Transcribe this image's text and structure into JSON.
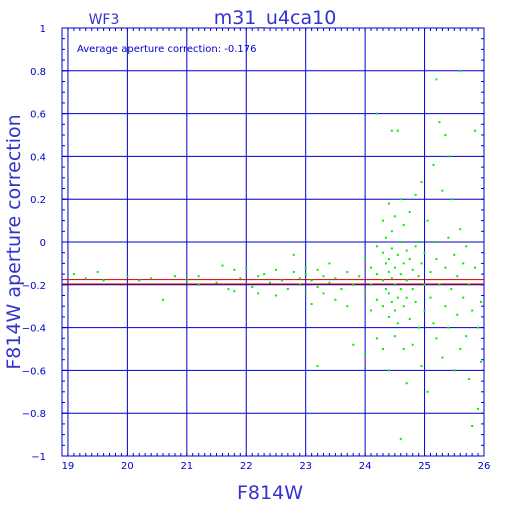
{
  "chart_data": {
    "type": "scatter",
    "title": "m31_u4ca10",
    "chip_label": "WF3",
    "annotation": "Average aperture correction: -0.176",
    "xlabel": "F814W",
    "ylabel": "F814W aperture correction",
    "xlim": [
      18.9,
      26.0
    ],
    "ylim": [
      -1.0,
      1.0
    ],
    "grid": true,
    "x_ticks": [
      19,
      20,
      21,
      22,
      23,
      24,
      25,
      26
    ],
    "y_ticks": [
      -1,
      -0.8,
      -0.6,
      -0.4,
      -0.2,
      0,
      0.2,
      0.4,
      0.6,
      0.8,
      1
    ],
    "x_tick_labels": [
      "19",
      "20",
      "21",
      "22",
      "23",
      "24",
      "25",
      "26"
    ],
    "y_tick_labels": [
      "−1",
      "−0.8",
      "−0.6",
      "−0.4",
      "−0.2",
      "0",
      "0.2",
      "0.4",
      "0.6",
      "0.8",
      "1"
    ],
    "reference_lines": [
      {
        "y": -0.176,
        "color": "#cc0000"
      },
      {
        "y": -0.196,
        "color": "#cc0000"
      }
    ],
    "colors": {
      "background": "#ffffff",
      "axes": "#0000cc",
      "grid": "#0000cc",
      "points": "#00ee00",
      "label_text": "#3333cc"
    },
    "series": [
      {
        "points": [
          [
            19.1,
            -0.15
          ],
          [
            19.3,
            -0.17
          ],
          [
            19.5,
            -0.14
          ],
          [
            19.6,
            -0.18
          ],
          [
            20.0,
            -0.16
          ],
          [
            20.2,
            -0.18
          ],
          [
            20.4,
            -0.17
          ],
          [
            20.6,
            -0.27
          ],
          [
            20.8,
            -0.16
          ],
          [
            21.0,
            -0.18
          ],
          [
            21.2,
            -0.16
          ],
          [
            21.2,
            -0.2
          ],
          [
            21.5,
            -0.19
          ],
          [
            21.6,
            -0.11
          ],
          [
            21.7,
            -0.22
          ],
          [
            21.8,
            -0.13
          ],
          [
            21.8,
            -0.23
          ],
          [
            21.9,
            -0.17
          ],
          [
            22.0,
            -0.12
          ],
          [
            22.1,
            -0.21
          ],
          [
            22.2,
            -0.16
          ],
          [
            22.2,
            -0.24
          ],
          [
            22.3,
            -0.15
          ],
          [
            22.4,
            -0.19
          ],
          [
            22.5,
            -0.25
          ],
          [
            22.5,
            -0.13
          ],
          [
            22.6,
            -0.18
          ],
          [
            22.7,
            -0.22
          ],
          [
            22.8,
            -0.14
          ],
          [
            22.8,
            -0.06
          ],
          [
            22.9,
            -0.17
          ],
          [
            22.9,
            -0.2
          ],
          [
            23.0,
            -0.15
          ],
          [
            23.0,
            -0.24
          ],
          [
            23.0,
            -0.12
          ],
          [
            23.1,
            -0.18
          ],
          [
            23.1,
            -0.29
          ],
          [
            23.2,
            -0.21
          ],
          [
            23.2,
            -0.13
          ],
          [
            23.2,
            -0.58
          ],
          [
            23.3,
            -0.16
          ],
          [
            23.3,
            -0.24
          ],
          [
            23.4,
            -0.1
          ],
          [
            23.4,
            -0.19
          ],
          [
            23.5,
            -0.27
          ],
          [
            23.5,
            -0.17
          ],
          [
            23.6,
            -0.22
          ],
          [
            23.7,
            -0.14
          ],
          [
            23.7,
            -0.3
          ],
          [
            23.8,
            -0.2
          ],
          [
            23.8,
            -0.48
          ],
          [
            23.9,
            -0.16
          ],
          [
            24.0,
            -0.07
          ],
          [
            24.0,
            -0.24
          ],
          [
            24.0,
            -0.52
          ],
          [
            24.1,
            -0.12
          ],
          [
            24.1,
            -0.2
          ],
          [
            24.1,
            -0.32
          ],
          [
            24.2,
            -0.02
          ],
          [
            24.2,
            -0.15
          ],
          [
            24.2,
            -0.27
          ],
          [
            24.2,
            0.6
          ],
          [
            24.2,
            -0.45
          ],
          [
            24.3,
            0.1
          ],
          [
            24.3,
            -0.05
          ],
          [
            24.3,
            -0.18
          ],
          [
            24.3,
            -0.3
          ],
          [
            24.3,
            -0.5
          ],
          [
            24.35,
            0.02
          ],
          [
            24.35,
            -0.1
          ],
          [
            24.35,
            -0.22
          ],
          [
            24.4,
            0.18
          ],
          [
            24.4,
            -0.08
          ],
          [
            24.4,
            -0.14
          ],
          [
            24.4,
            -0.24
          ],
          [
            24.4,
            -0.35
          ],
          [
            24.4,
            -0.6
          ],
          [
            24.45,
            0.52
          ],
          [
            24.45,
            0.05
          ],
          [
            24.45,
            -0.03
          ],
          [
            24.45,
            -0.17
          ],
          [
            24.45,
            -0.28
          ],
          [
            24.5,
            0.12
          ],
          [
            24.5,
            -0.12
          ],
          [
            24.5,
            -0.2
          ],
          [
            24.5,
            -0.32
          ],
          [
            24.5,
            -0.44
          ],
          [
            24.55,
            0.52
          ],
          [
            24.55,
            -0.06
          ],
          [
            24.55,
            -0.26
          ],
          [
            24.55,
            -0.38
          ],
          [
            24.6,
            0.2
          ],
          [
            24.6,
            0.0
          ],
          [
            24.6,
            -0.15
          ],
          [
            24.6,
            -0.22
          ],
          [
            24.6,
            -0.92
          ],
          [
            24.65,
            0.08
          ],
          [
            24.65,
            -0.1
          ],
          [
            24.65,
            -0.3
          ],
          [
            24.65,
            -0.5
          ],
          [
            24.7,
            -0.04
          ],
          [
            24.7,
            -0.18
          ],
          [
            24.7,
            -0.26
          ],
          [
            24.7,
            -0.66
          ],
          [
            24.75,
            0.14
          ],
          [
            24.75,
            -0.08
          ],
          [
            24.75,
            -0.36
          ],
          [
            24.8,
            -0.13
          ],
          [
            24.8,
            -0.22
          ],
          [
            24.8,
            -0.48
          ],
          [
            24.85,
            0.22
          ],
          [
            24.85,
            -0.02
          ],
          [
            24.85,
            -0.28
          ],
          [
            24.9,
            0.0
          ],
          [
            24.9,
            -0.16
          ],
          [
            24.9,
            -0.4
          ],
          [
            24.95,
            0.28
          ],
          [
            24.95,
            -0.1
          ],
          [
            24.95,
            -0.58
          ],
          [
            25.0,
            -0.05
          ],
          [
            25.0,
            -0.2
          ],
          [
            25.0,
            -0.32
          ],
          [
            25.05,
            0.1
          ],
          [
            25.05,
            -0.7
          ],
          [
            25.1,
            -0.14
          ],
          [
            25.1,
            -0.26
          ],
          [
            25.15,
            0.36
          ],
          [
            25.15,
            -0.38
          ],
          [
            25.2,
            0.76
          ],
          [
            25.2,
            0.0
          ],
          [
            25.2,
            -0.08
          ],
          [
            25.2,
            -0.45
          ],
          [
            25.25,
            0.56
          ],
          [
            25.25,
            -0.2
          ],
          [
            25.3,
            0.24
          ],
          [
            25.3,
            -0.54
          ],
          [
            25.35,
            0.5
          ],
          [
            25.35,
            -0.12
          ],
          [
            25.35,
            -0.3
          ],
          [
            25.4,
            0.4
          ],
          [
            25.4,
            0.02
          ],
          [
            25.4,
            -0.4
          ],
          [
            25.45,
            0.2
          ],
          [
            25.45,
            -0.22
          ],
          [
            25.5,
            -0.06
          ],
          [
            25.5,
            -0.6
          ],
          [
            25.55,
            -0.16
          ],
          [
            25.55,
            -0.34
          ],
          [
            25.6,
            0.8
          ],
          [
            25.6,
            0.06
          ],
          [
            25.6,
            -0.5
          ],
          [
            25.65,
            -0.1
          ],
          [
            25.65,
            -0.26
          ],
          [
            25.7,
            -0.02
          ],
          [
            25.7,
            -0.44
          ],
          [
            25.75,
            -0.2
          ],
          [
            25.75,
            -0.64
          ],
          [
            25.8,
            -0.86
          ],
          [
            25.8,
            -0.32
          ],
          [
            25.85,
            0.52
          ],
          [
            25.85,
            -0.12
          ],
          [
            25.9,
            -0.78
          ],
          [
            25.9,
            -0.4
          ],
          [
            25.95,
            -0.28
          ],
          [
            25.95,
            -0.56
          ]
        ]
      }
    ]
  }
}
